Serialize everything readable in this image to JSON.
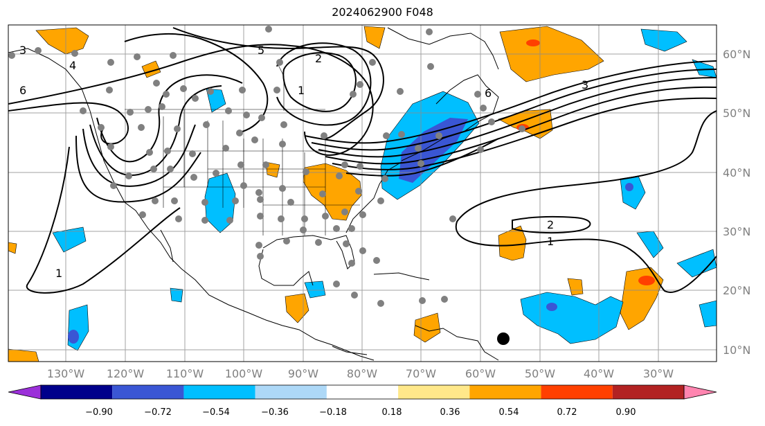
{
  "title": "2024062900 F048",
  "map": {
    "longitude_labels": [
      "130°W",
      "120°W",
      "110°W",
      "100°W",
      "90°W",
      "80°W",
      "70°W",
      "60°W",
      "50°W",
      "40°W",
      "30°W"
    ],
    "latitude_labels": [
      "60°N",
      "50°N",
      "40°N",
      "30°N",
      "20°N",
      "10°N"
    ],
    "contour_labels": [
      "3",
      "4",
      "6",
      "5",
      "2",
      "1",
      "6",
      "3",
      "2",
      "1",
      "1"
    ]
  },
  "colorbar": {
    "labels": [
      "−0.90",
      "−0.72",
      "−0.54",
      "−0.36",
      "−0.18",
      "0.18",
      "0.36",
      "0.54",
      "0.72",
      "0.90"
    ],
    "colors": [
      "#9b30d9",
      "#00008b",
      "#3a56d4",
      "#00bfff",
      "#add8f7",
      "#ffffff",
      "#ffe88a",
      "#ffa500",
      "#ff4000",
      "#b22222",
      "#ff85b0"
    ]
  },
  "colors": {
    "gray_marker": "#808080",
    "contour": "#000000",
    "frame": "#000000"
  }
}
